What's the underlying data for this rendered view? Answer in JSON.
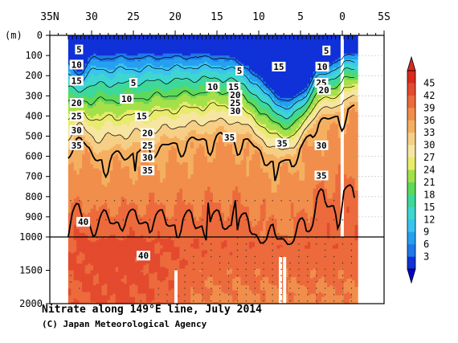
{
  "chart_data": {
    "type": "heatmap",
    "title": "Nitrate along 149°E line, July 2014",
    "credit": "(C) Japan Meteorological Agency",
    "ylabel": "(m)",
    "x_axis": {
      "ticks": [
        {
          "value": 35,
          "label": "35N"
        },
        {
          "value": 30,
          "label": "30"
        },
        {
          "value": 25,
          "label": "25"
        },
        {
          "value": 20,
          "label": "20"
        },
        {
          "value": 15,
          "label": "15"
        },
        {
          "value": 10,
          "label": "10"
        },
        {
          "value": 5,
          "label": "5"
        },
        {
          "value": 0,
          "label": "0"
        },
        {
          "value": -5,
          "label": "5S"
        }
      ],
      "range": [
        35,
        -5
      ]
    },
    "y_axis": {
      "upper_ticks": [
        0,
        100,
        200,
        300,
        400,
        500,
        600,
        700,
        800,
        900,
        1000
      ],
      "lower_ticks": [
        1500,
        2000
      ],
      "upper_range": [
        0,
        1000
      ],
      "lower_range": [
        1000,
        2000
      ]
    },
    "colorbar": {
      "levels": [
        3,
        6,
        9,
        12,
        15,
        18,
        21,
        24,
        27,
        30,
        33,
        36,
        39,
        42,
        45
      ],
      "colors": [
        "#1030d8",
        "#1f78e8",
        "#25a0f0",
        "#3ac4f0",
        "#3fd6d0",
        "#3ed89a",
        "#5ed85a",
        "#a4e04a",
        "#e8ec6c",
        "#f7e6a2",
        "#f6cf86",
        "#f4b060",
        "#f18e4c",
        "#ec6a3c",
        "#e34a2e",
        "#d92a1e"
      ],
      "under_color": "#0000cc",
      "over_color": "#d92a1e"
    },
    "contour_labels": [
      {
        "text": "5",
        "lat": 31.5,
        "depth": 70
      },
      {
        "text": "10",
        "lat": 31.8,
        "depth": 145
      },
      {
        "text": "15",
        "lat": 31.8,
        "depth": 225
      },
      {
        "text": "20",
        "lat": 31.8,
        "depth": 335
      },
      {
        "text": "25",
        "lat": 31.8,
        "depth": 400
      },
      {
        "text": "30",
        "lat": 31.8,
        "depth": 470
      },
      {
        "text": "35",
        "lat": 31.8,
        "depth": 545
      },
      {
        "text": "5",
        "lat": 25.0,
        "depth": 235
      },
      {
        "text": "10",
        "lat": 25.8,
        "depth": 315
      },
      {
        "text": "15",
        "lat": 24.0,
        "depth": 400
      },
      {
        "text": "20",
        "lat": 23.3,
        "depth": 485
      },
      {
        "text": "25",
        "lat": 23.3,
        "depth": 545
      },
      {
        "text": "30",
        "lat": 23.3,
        "depth": 605
      },
      {
        "text": "35",
        "lat": 23.3,
        "depth": 670
      },
      {
        "text": "10",
        "lat": 15.5,
        "depth": 255
      },
      {
        "text": "15",
        "lat": 13.0,
        "depth": 255
      },
      {
        "text": "5",
        "lat": 12.3,
        "depth": 175
      },
      {
        "text": "20",
        "lat": 12.8,
        "depth": 295
      },
      {
        "text": "25",
        "lat": 12.8,
        "depth": 335
      },
      {
        "text": "30",
        "lat": 12.8,
        "depth": 375
      },
      {
        "text": "35",
        "lat": 13.5,
        "depth": 505
      },
      {
        "text": "15",
        "lat": 7.6,
        "depth": 155
      },
      {
        "text": "35",
        "lat": 7.2,
        "depth": 535
      },
      {
        "text": "5",
        "lat": 1.9,
        "depth": 75
      },
      {
        "text": "10",
        "lat": 2.4,
        "depth": 155
      },
      {
        "text": "25",
        "lat": 2.5,
        "depth": 235
      },
      {
        "text": "20",
        "lat": 2.2,
        "depth": 270
      },
      {
        "text": "30",
        "lat": 2.5,
        "depth": 545
      },
      {
        "text": "35",
        "lat": 2.5,
        "depth": 695
      },
      {
        "text": "40",
        "lat": 31.0,
        "depth": 925
      },
      {
        "text": "40",
        "lat": 23.8,
        "depth": 1280
      }
    ],
    "legend": "right"
  }
}
